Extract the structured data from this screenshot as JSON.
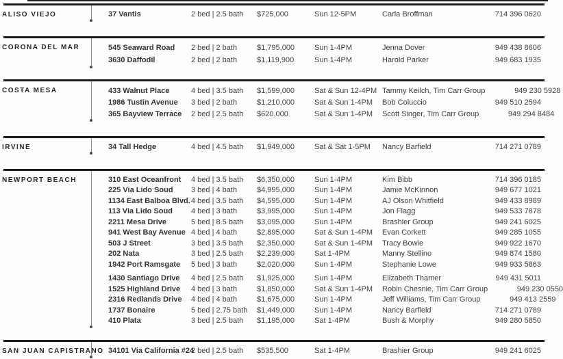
{
  "sections": [
    {
      "city": "ALISO VIEJO",
      "rows": [
        {
          "address": "37 Vantis",
          "bedbath": "2 bed | 2.5 bath",
          "price": "$725,000",
          "time": "Sun 12-5PM",
          "agent": "Carla Broffman",
          "phone": "714 396 0620"
        }
      ]
    },
    {
      "city": "CORONA DEL MAR",
      "rows": [
        {
          "address": "545 Seaward Road",
          "bedbath": "2 bed | 2 bath",
          "price": "$1,795,000",
          "time": "Sun 1-4PM",
          "agent": "Jenna Dover",
          "phone": "949 438 8606"
        },
        {
          "address": "3630 Daffodil",
          "bedbath": "2 bed | 2 bath",
          "price": "$1,119,900",
          "time": "Sun 1-4PM",
          "agent": "Harold Parker",
          "phone": "949 683 1935"
        }
      ]
    },
    {
      "city": "COSTA MESA",
      "rows": [
        {
          "address": "433 Walnut Place",
          "bedbath": "4 bed | 3.5 bath",
          "price": "$1,599,000",
          "time": "Sat & Sun 12-4PM",
          "agent": "Tammy Keilch, Tim Carr Group",
          "phone": "949 230 5928"
        },
        {
          "address": "1986 Tustin Avenue",
          "bedbath": "3 bed | 2 bath",
          "price": "$1,210,000",
          "time": "Sat & Sun 1-4PM",
          "agent": "Bob Coluccio",
          "phone": "949 510 2594"
        },
        {
          "address": "365 Bayview Terrace",
          "bedbath": "2 bed | 2.5 bath",
          "price": "$620,000",
          "time": "Sat & Sun 1-4PM",
          "agent": "Scott Singer, Tim Carr Group",
          "phone": "949 294 8484"
        }
      ]
    },
    {
      "city": "IRVINE",
      "rows": [
        {
          "address": "34 Tall Hedge",
          "bedbath": "4 bed | 4.5 bath",
          "price": "$1,949,000",
          "time": "Sat & Sat 1-5PM",
          "agent": "Nancy Barfield",
          "phone": "714 271 0789"
        }
      ]
    },
    {
      "city": "NEWPORT BEACH",
      "rows": [
        {
          "address": "310 East Oceanfront",
          "bedbath": "4 bed | 3.5 bath",
          "price": "$6,350,000",
          "time": "Sun 1-4PM",
          "agent": "Kim Bibb",
          "phone": "714 396 0185"
        },
        {
          "address": "225 Via Lido Soud",
          "bedbath": "3 bed | 4 bath",
          "price": "$4,995,000",
          "time": "Sun 1-4PM",
          "agent": "Jamie McKinnon",
          "phone": "949 677 1021"
        },
        {
          "address": "1134 East Balboa Blvd.",
          "bedbath": "4 bed | 3.5 bath",
          "price": "$4,595,000",
          "time": "Sun 1-4PM",
          "agent": "AJ Olson Whitfield",
          "phone": "949 433 8989"
        },
        {
          "address": "113 Via Lido Soud",
          "bedbath": "4 bed | 3 bath",
          "price": "$3,995,000",
          "time": "Sun 1-4PM",
          "agent": "Jon Flagg",
          "phone": "949 533 7878"
        },
        {
          "address": "2211 Mesa Drive",
          "bedbath": "5 bed | 8.5 bath",
          "price": "$3,095,000",
          "time": "Sun 1-4PM",
          "agent": "Brashier Group",
          "phone": "949 241 6025"
        },
        {
          "address": "941 West Bay Avenue",
          "bedbath": "4 bed | 4 bath",
          "price": "$2,895,000",
          "time": "Sat & Sun 1-4PM",
          "agent": "Evan Corkett",
          "phone": "949 285 1055"
        },
        {
          "address": "503 J Street",
          "bedbath": "3 bed | 3.5 bath",
          "price": "$2,350,000",
          "time": "Sat & Sun 1-4PM",
          "agent": "Tracy Bowie",
          "phone": "949 922 1670"
        },
        {
          "address": "202 Nata",
          "bedbath": "3 bed | 2.5 bath",
          "price": "$2,239,000",
          "time": "Sat 1-4PM",
          "agent": "Manny Stellino",
          "phone": "949 874 1580"
        },
        {
          "address": "1942 Port Ramsgate",
          "bedbath": "5 bed | 3 bath",
          "price": "$2,020,000",
          "time": "Sun 1-4PM",
          "agent": "Stephanie Lowe",
          "phone": "949 933 5863"
        },
        {
          "address": "1430 Santiago Drive",
          "bedbath": "4 bed | 2.5 bath",
          "price": "$1,925,000",
          "time": "Sun 1-4PM",
          "agent": "Elizabeth Thamer",
          "phone": "949 431 5011",
          "gap_before": true
        },
        {
          "address": "1525 Highland Drive",
          "bedbath": "4 bed | 3 bath",
          "price": "$1,850,000",
          "time": "Sat & Sun 1-4PM",
          "agent": "Robin Chesnie, Tim Carr Group",
          "phone": "949 230 0550"
        },
        {
          "address": "2316 Redlands Drive",
          "bedbath": "4 bed | 4 bath",
          "price": "$1,675,000",
          "time": "Sun 1-4PM",
          "agent": "Jeff Williams, Tim Carr Group",
          "phone": "949 413 2559"
        },
        {
          "address": "1737 Bonaire",
          "bedbath": "5 bed | 2.75 bath",
          "price": "$1,449,000",
          "time": "Sun 1-4PM",
          "agent": "Nancy Barfield",
          "phone": "714 271 0789"
        },
        {
          "address": "410 Plata",
          "bedbath": "3 bed | 2.5 bath",
          "price": "$1,195,000",
          "time": "Sat 1-4PM",
          "agent": "Bush & Morphy",
          "phone": "949 280 5850"
        }
      ]
    },
    {
      "city": "SAN JUAN CAPISTRANO",
      "rows": [
        {
          "address": "34101 Via California #24",
          "bedbath": "2 bed | 2.5 bath",
          "price": "$535,500",
          "time": "Sat 1-4PM",
          "agent": "Brashier Group",
          "phone": "949 241 6025"
        }
      ]
    }
  ]
}
